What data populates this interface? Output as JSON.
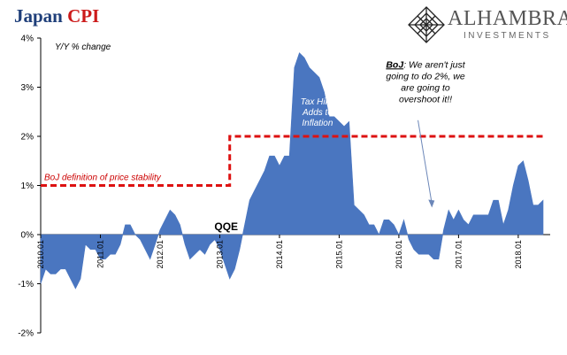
{
  "header": {
    "title_part1": "Japan",
    "title_part2": "CPI"
  },
  "brand": {
    "name": "ALHAMBRA",
    "subtitle": "INVESTMENTS",
    "logo_icon": "diamond-lattice-logo-icon"
  },
  "colors": {
    "area": "#4a76c0",
    "threshold": "#dd1111",
    "title_blue": "#1f3f7a",
    "title_red": "#cc1a1a",
    "annotation_red": "#cc0000",
    "arrow": "#6b86b8"
  },
  "chart_data": {
    "type": "area",
    "subtitle": "Y/Y % change",
    "ylim": [
      -2,
      4
    ],
    "yticks": [
      -2,
      -1,
      0,
      1,
      2,
      3,
      4
    ],
    "ytick_labels": [
      "-2%",
      "-1%",
      "0%",
      "1%",
      "2%",
      "3%",
      "4%"
    ],
    "xticks": [
      "2010.01",
      "2011.01",
      "2012.01",
      "2013.01",
      "2014.01",
      "2015.01",
      "2016.01",
      "2017.01",
      "2018.01"
    ],
    "grid": false,
    "legend": "none",
    "series": [
      {
        "x": [
          "2010.01",
          "2010.02",
          "2010.03",
          "2010.04",
          "2010.05",
          "2010.06",
          "2010.07",
          "2010.08",
          "2010.09",
          "2010.10",
          "2010.11",
          "2010.12",
          "2011.01",
          "2011.02",
          "2011.03",
          "2011.04",
          "2011.05",
          "2011.06",
          "2011.07",
          "2011.08",
          "2011.09",
          "2011.10",
          "2011.11",
          "2011.12",
          "2012.01",
          "2012.02",
          "2012.03",
          "2012.04",
          "2012.05",
          "2012.06",
          "2012.07",
          "2012.08",
          "2012.09",
          "2012.10",
          "2012.11",
          "2012.12",
          "2013.01",
          "2013.02",
          "2013.03",
          "2013.04",
          "2013.05",
          "2013.06",
          "2013.07",
          "2013.08",
          "2013.09",
          "2013.10",
          "2013.11",
          "2013.12",
          "2014.01",
          "2014.02",
          "2014.03",
          "2014.04",
          "2014.05",
          "2014.06",
          "2014.07",
          "2014.08",
          "2014.09",
          "2014.10",
          "2014.11",
          "2014.12",
          "2015.01",
          "2015.02",
          "2015.03",
          "2015.04",
          "2015.05",
          "2015.06",
          "2015.07",
          "2015.08",
          "2015.09",
          "2015.10",
          "2015.11",
          "2015.12",
          "2016.01",
          "2016.02",
          "2016.03",
          "2016.04",
          "2016.05",
          "2016.06",
          "2016.07",
          "2016.08",
          "2016.09",
          "2016.10",
          "2016.11",
          "2016.12",
          "2017.01",
          "2017.02",
          "2017.03",
          "2017.04",
          "2017.05",
          "2017.06",
          "2017.07",
          "2017.08",
          "2017.09",
          "2017.10",
          "2017.11",
          "2017.12",
          "2018.01",
          "2018.02",
          "2018.03",
          "2018.04",
          "2018.05",
          "2018.06"
        ],
        "values": [
          -1.0,
          -0.7,
          -0.8,
          -0.8,
          -0.7,
          -0.7,
          -0.9,
          -1.1,
          -0.9,
          -0.2,
          -0.3,
          -0.3,
          -0.5,
          -0.5,
          -0.4,
          -0.4,
          -0.2,
          0.2,
          0.2,
          0.0,
          -0.1,
          -0.3,
          -0.5,
          -0.2,
          0.1,
          0.3,
          0.5,
          0.4,
          0.2,
          -0.2,
          -0.5,
          -0.4,
          -0.3,
          -0.4,
          -0.2,
          -0.1,
          -0.3,
          -0.6,
          -0.9,
          -0.7,
          -0.3,
          0.2,
          0.7,
          0.9,
          1.1,
          1.3,
          1.6,
          1.6,
          1.4,
          1.6,
          1.6,
          3.4,
          3.7,
          3.6,
          3.4,
          3.3,
          3.2,
          2.9,
          2.4,
          2.4,
          2.3,
          2.2,
          2.3,
          0.6,
          0.5,
          0.4,
          0.2,
          0.2,
          0.0,
          0.3,
          0.3,
          0.2,
          0.0,
          0.3,
          -0.1,
          -0.3,
          -0.4,
          -0.4,
          -0.4,
          -0.5,
          -0.5,
          0.1,
          0.5,
          0.3,
          0.5,
          0.3,
          0.2,
          0.4,
          0.4,
          0.4,
          0.4,
          0.7,
          0.7,
          0.2,
          0.5,
          1.0,
          1.4,
          1.5,
          1.1,
          0.6,
          0.6,
          0.7
        ]
      }
    ],
    "threshold_line": {
      "segments": [
        {
          "from": "2010.01",
          "to": "2013.03",
          "value": 1.0
        },
        {
          "from": "2013.03",
          "to": "2018.06",
          "value": 2.0
        }
      ],
      "label": "BoJ definition of price stability"
    },
    "annotations": {
      "tax_hike": "Tax Hike\nAdds to\nInflation",
      "qqe": "QQE",
      "boj_prefix": "BoJ",
      "boj_quote_lines": [
        ": We aren't just",
        "going to do 2%, we",
        "are going to",
        "overshoot it!!"
      ],
      "arrow_from": {
        "x": "2016.02",
        "y": 2.4
      },
      "arrow_to": {
        "x": "2016.08",
        "y": 0.55
      }
    }
  }
}
